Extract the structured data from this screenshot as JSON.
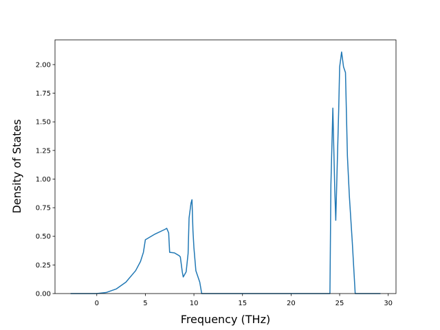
{
  "chart_data": {
    "type": "line",
    "x_label": "Frequency (THz)",
    "y_label": "Density of States",
    "x": [
      -2.7,
      0,
      1,
      2,
      3,
      4,
      4.5,
      4.8,
      5,
      6,
      7,
      7.2,
      7.4,
      7.5,
      8,
      8.5,
      8.6,
      8.8,
      8.9,
      9.2,
      9.4,
      9.5,
      9.7,
      9.8,
      9.9,
      10,
      10.2,
      10.6,
      10.8,
      24,
      24.1,
      24.3,
      24.5,
      24.6,
      24.9,
      25,
      25.2,
      25.4,
      25.6,
      25.8,
      26,
      26.3,
      26.6,
      29.2
    ],
    "series": [
      {
        "color": "#1f77b4",
        "values": [
          0,
          0,
          0.01,
          0.04,
          0.1,
          0.2,
          0.28,
          0.36,
          0.47,
          0.52,
          0.56,
          0.57,
          0.53,
          0.36,
          0.355,
          0.33,
          0.32,
          0.19,
          0.145,
          0.19,
          0.35,
          0.66,
          0.79,
          0.82,
          0.55,
          0.4,
          0.2,
          0.1,
          0,
          0,
          0.95,
          1.62,
          0.9,
          0.64,
          1.6,
          1.98,
          2.11,
          1.98,
          1.93,
          1.2,
          0.85,
          0.45,
          0,
          0
        ]
      }
    ],
    "xlim": [
      -4.3,
      30.8
    ],
    "xticks": [
      0,
      5,
      10,
      15,
      20,
      25,
      30
    ],
    "ylim": [
      0,
      2.216
    ],
    "yticks": [
      {
        "value": 0,
        "label": "0.00"
      },
      {
        "value": 0.25,
        "label": "0.25"
      },
      {
        "value": 0.5,
        "label": "0.50"
      },
      {
        "value": 0.75,
        "label": "0.75"
      },
      {
        "value": 1,
        "label": "1.00"
      },
      {
        "value": 1.25,
        "label": "1.25"
      },
      {
        "value": 1.5,
        "label": "1.50"
      },
      {
        "value": 1.75,
        "label": "1.75"
      },
      {
        "value": 2,
        "label": "2.00"
      }
    ]
  }
}
